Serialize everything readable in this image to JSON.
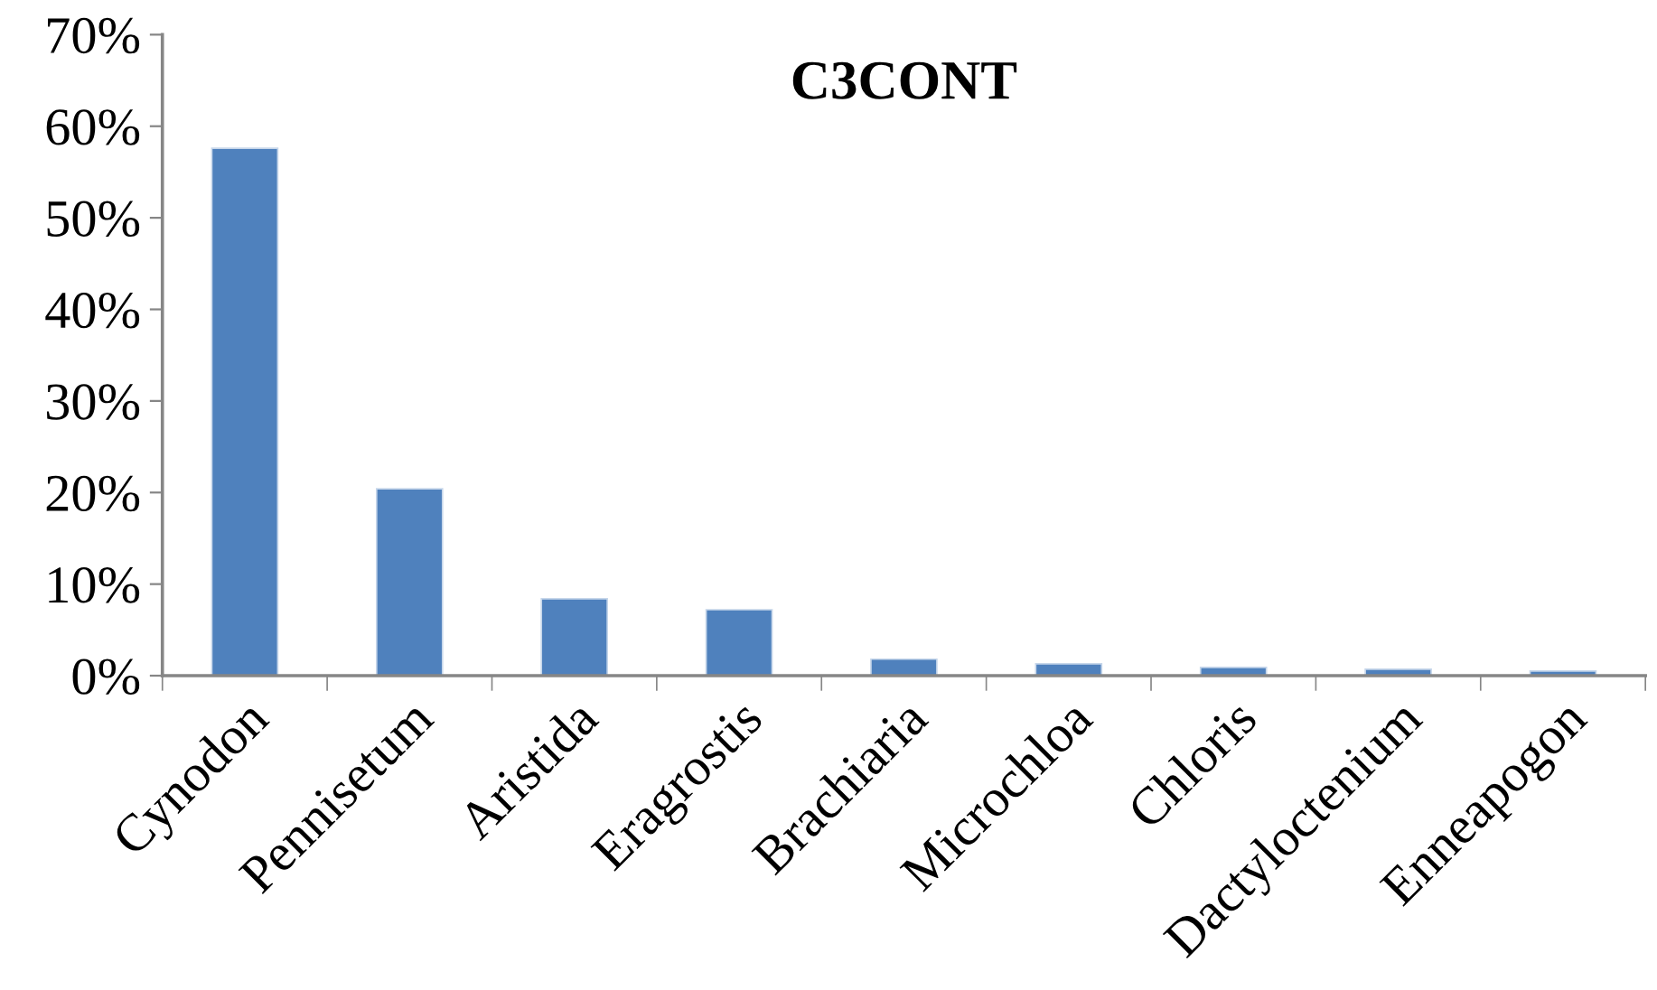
{
  "chart_data": {
    "type": "bar",
    "title": "C3CONT",
    "categories": [
      "Cynodon",
      "Pennisetum",
      "Aristida",
      "Eragrostis",
      "Brachiaria",
      "Microchloa",
      "Chloris",
      "Dactyloctenium",
      "Enneapogon"
    ],
    "values": [
      57.6,
      20.4,
      8.4,
      7.2,
      1.8,
      1.3,
      0.9,
      0.7,
      0.5
    ],
    "color": "#4f81bd",
    "ylim": [
      0,
      70
    ],
    "yticks": [
      {
        "value": 0,
        "label": "0%"
      },
      {
        "value": 10,
        "label": "10%"
      },
      {
        "value": 20,
        "label": "20%"
      },
      {
        "value": 30,
        "label": "30%"
      },
      {
        "value": 40,
        "label": "40%"
      },
      {
        "value": 50,
        "label": "50%"
      },
      {
        "value": 60,
        "label": "60%"
      },
      {
        "value": 70,
        "label": "70%"
      }
    ],
    "grid": false,
    "legend": false
  }
}
